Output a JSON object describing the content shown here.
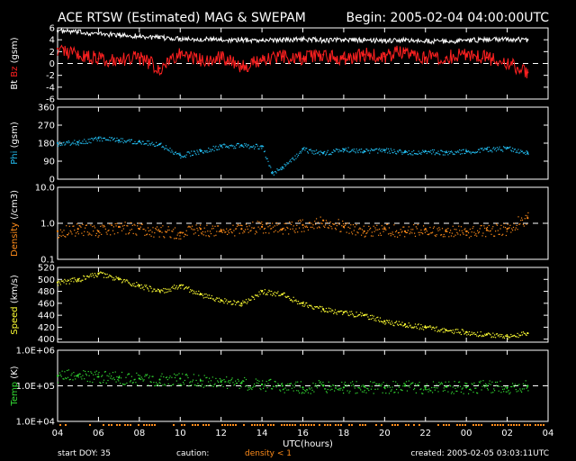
{
  "header": {
    "title": "ACE RTSW (Estimated) MAG & SWEPAM",
    "begin": "Begin: 2005-02-04 04:00:00UTC"
  },
  "footer": {
    "start_doy": "start DOY:  35",
    "caution": "caution:",
    "density_note": "density < 1",
    "created": "created: 2005-02-05 03:03:11UTC"
  },
  "colors": {
    "background": "#000000",
    "bt": "#ffffff",
    "bz": "#ff2020",
    "phi": "#22bbee",
    "density": "#ff8c1a",
    "speed": "#ffff33",
    "temp": "#33dd33"
  },
  "chart_data": [
    {
      "type": "line",
      "ylabel_parts": [
        "Bt",
        "Bz",
        "(gsm)"
      ],
      "ylim": [
        -6,
        6
      ],
      "yticks": [
        "6",
        "4",
        "2",
        "0",
        "-2",
        "-4",
        "-6"
      ],
      "ref_line": 0,
      "series": [
        {
          "name": "Bt",
          "color": "#ffffff",
          "x": [
            4,
            5,
            6,
            7,
            8,
            9,
            10,
            11,
            12,
            13,
            14,
            15,
            16,
            17,
            18,
            19,
            20,
            21,
            22,
            23,
            24,
            25,
            26,
            27
          ],
          "y": [
            5.5,
            5.3,
            5.0,
            4.8,
            4.6,
            4.3,
            4.2,
            4.1,
            4.0,
            4.0,
            3.9,
            4.0,
            4.1,
            3.9,
            4.0,
            3.9,
            3.8,
            3.9,
            3.8,
            3.7,
            3.9,
            4.0,
            4.1,
            4.0
          ]
        },
        {
          "name": "Bz",
          "color": "#ff2020",
          "x": [
            4,
            5,
            6,
            7,
            8,
            9,
            10,
            11,
            12,
            13,
            14,
            15,
            16,
            17,
            18,
            19,
            20,
            21,
            22,
            23,
            24,
            25,
            26,
            27
          ],
          "y": [
            2.5,
            1.5,
            0.8,
            0.5,
            1.0,
            -0.8,
            1.8,
            0.5,
            1.0,
            -0.5,
            0.5,
            1.2,
            0.8,
            1.5,
            0.8,
            1.5,
            1.2,
            2.2,
            1.0,
            1.0,
            1.5,
            1.0,
            0.0,
            -1.5
          ]
        }
      ]
    },
    {
      "type": "scatter",
      "ylabel_parts": [
        "Phi",
        "(gsm)"
      ],
      "ylim": [
        0,
        360
      ],
      "yticks": [
        "360",
        "270",
        "180",
        "90",
        "0"
      ],
      "series": [
        {
          "name": "Phi",
          "color": "#22bbee",
          "x": [
            4,
            5,
            6,
            7,
            8,
            9,
            10,
            11,
            12,
            13,
            14,
            14.5,
            15,
            16,
            17,
            18,
            19,
            20,
            21,
            22,
            23,
            24,
            25,
            26,
            27
          ],
          "y": [
            180,
            185,
            205,
            195,
            190,
            175,
            120,
            140,
            165,
            170,
            165,
            30,
            60,
            150,
            130,
            150,
            140,
            145,
            135,
            140,
            135,
            140,
            150,
            155,
            130
          ]
        }
      ]
    },
    {
      "type": "scatter",
      "log": true,
      "ylabel_parts": [
        "Density",
        "(/cm3)"
      ],
      "ylim": [
        0.1,
        10
      ],
      "yticks": [
        "10.0",
        "1.0",
        "0.1"
      ],
      "ref_line": 1,
      "series": [
        {
          "name": "Density",
          "color": "#ff8c1a",
          "x": [
            4,
            5,
            6,
            7,
            8,
            9,
            10,
            11,
            12,
            13,
            14,
            15,
            16,
            17,
            18,
            19,
            20,
            21,
            22,
            23,
            24,
            25,
            26,
            27
          ],
          "y": [
            0.6,
            0.7,
            0.6,
            0.8,
            0.7,
            0.6,
            0.55,
            0.7,
            0.6,
            0.7,
            0.8,
            0.7,
            0.9,
            1.2,
            0.8,
            0.6,
            0.7,
            0.6,
            0.7,
            0.6,
            0.6,
            0.65,
            0.7,
            1.4
          ]
        }
      ]
    },
    {
      "type": "scatter",
      "ylabel_parts": [
        "Speed",
        "(km/s)"
      ],
      "ylim": [
        395,
        520
      ],
      "yticks": [
        "520",
        "500",
        "480",
        "460",
        "440",
        "420",
        "400"
      ],
      "series": [
        {
          "name": "Speed",
          "color": "#ffff33",
          "x": [
            4,
            5,
            6,
            7,
            8,
            9,
            10,
            11,
            12,
            13,
            14,
            15,
            16,
            17,
            18,
            19,
            20,
            21,
            22,
            23,
            24,
            25,
            26,
            27
          ],
          "y": [
            495,
            500,
            510,
            500,
            490,
            480,
            490,
            475,
            465,
            460,
            480,
            475,
            460,
            450,
            445,
            440,
            430,
            425,
            420,
            415,
            412,
            408,
            405,
            410
          ]
        }
      ]
    },
    {
      "type": "scatter",
      "log": true,
      "ylabel_parts": [
        "Temp",
        "(K)"
      ],
      "ylim": [
        10000,
        1000000
      ],
      "yticks": [
        "1.0E+06",
        "1.0E+05",
        "1.0E+04"
      ],
      "ref_line": 100000,
      "series": [
        {
          "name": "Temp",
          "color": "#33dd33",
          "x": [
            4,
            5,
            6,
            7,
            8,
            9,
            10,
            11,
            12,
            13,
            14,
            15,
            16,
            17,
            18,
            19,
            20,
            21,
            22,
            23,
            24,
            25,
            26,
            27
          ],
          "y": [
            190000,
            200000,
            180000,
            170000,
            160000,
            150000,
            160000,
            140000,
            130000,
            120000,
            110000,
            100000,
            90000,
            100000,
            90000,
            95000,
            90000,
            100000,
            90000,
            95000,
            90000,
            100000,
            90000,
            100000
          ]
        }
      ]
    }
  ],
  "xaxis": {
    "xlabel": "UTC(hours)",
    "xlim": [
      4,
      28
    ],
    "tick_hours": [
      4,
      6,
      8,
      10,
      12,
      14,
      16,
      18,
      20,
      22,
      24,
      26,
      28
    ],
    "tick_labels": [
      "04",
      "06",
      "08",
      "10",
      "12",
      "14",
      "16",
      "18",
      "20",
      "22",
      "00",
      "02",
      "04"
    ]
  }
}
